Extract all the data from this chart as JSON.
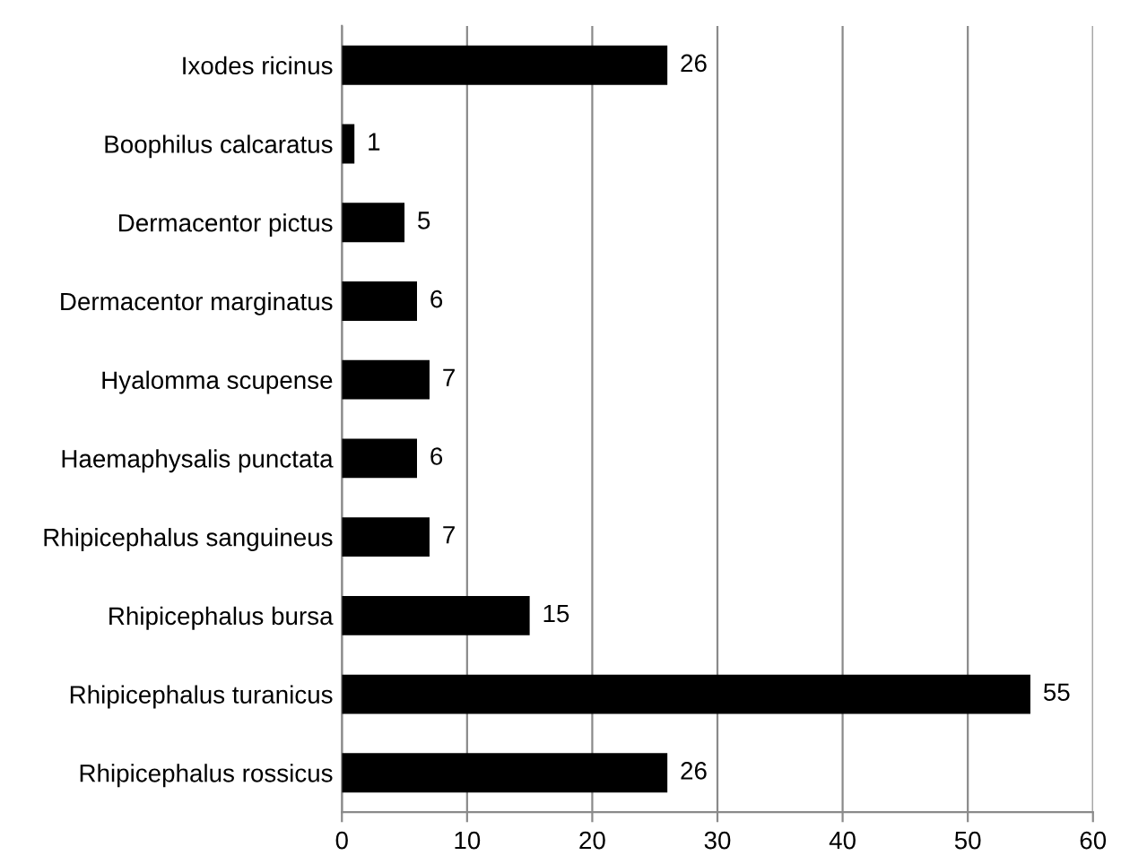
{
  "chart_data": {
    "type": "bar",
    "orientation": "horizontal",
    "categories": [
      "Ixodes ricinus",
      "Boophilus calcaratus",
      "Dermacentor pictus",
      "Dermacentor marginatus",
      "Hyalomma scupense",
      "Haemaphysalis punctata",
      "Rhipicephalus sanguineus",
      "Rhipicephalus bursa",
      "Rhipicephalus turanicus",
      "Rhipicephalus rossicus"
    ],
    "values": [
      26,
      1,
      5,
      6,
      7,
      6,
      7,
      15,
      55,
      26
    ],
    "color": "#000000",
    "xlim": [
      0,
      60
    ],
    "xticks": [
      0,
      10,
      20,
      30,
      40,
      50,
      60
    ],
    "grid": "x",
    "data_labels": true,
    "legend": false
  }
}
